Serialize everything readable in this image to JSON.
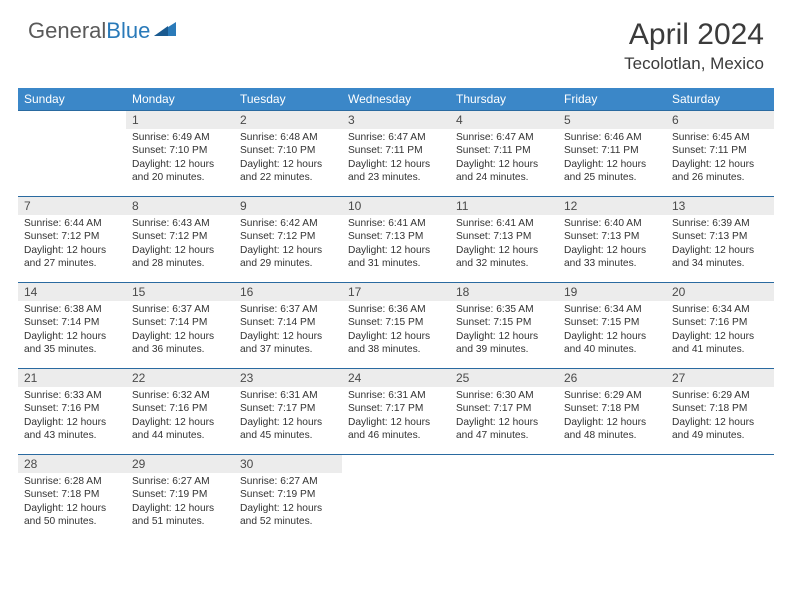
{
  "brand": {
    "left": "General",
    "right": "Blue"
  },
  "title": "April 2024",
  "location": "Tecolotlan, Mexico",
  "colors": {
    "header_bg": "#3b87c8",
    "header_text": "#ffffff",
    "daynum_bg": "#ececec",
    "rule": "#2a6aa0",
    "text": "#333333",
    "brand_gray": "#5a5a5a",
    "brand_blue": "#2a7ab9"
  },
  "daysOfWeek": [
    "Sunday",
    "Monday",
    "Tuesday",
    "Wednesday",
    "Thursday",
    "Friday",
    "Saturday"
  ],
  "weeks": [
    [
      null,
      {
        "n": "1",
        "sr": "6:49 AM",
        "ss": "7:10 PM",
        "dl": "12 hours and 20 minutes."
      },
      {
        "n": "2",
        "sr": "6:48 AM",
        "ss": "7:10 PM",
        "dl": "12 hours and 22 minutes."
      },
      {
        "n": "3",
        "sr": "6:47 AM",
        "ss": "7:11 PM",
        "dl": "12 hours and 23 minutes."
      },
      {
        "n": "4",
        "sr": "6:47 AM",
        "ss": "7:11 PM",
        "dl": "12 hours and 24 minutes."
      },
      {
        "n": "5",
        "sr": "6:46 AM",
        "ss": "7:11 PM",
        "dl": "12 hours and 25 minutes."
      },
      {
        "n": "6",
        "sr": "6:45 AM",
        "ss": "7:11 PM",
        "dl": "12 hours and 26 minutes."
      }
    ],
    [
      {
        "n": "7",
        "sr": "6:44 AM",
        "ss": "7:12 PM",
        "dl": "12 hours and 27 minutes."
      },
      {
        "n": "8",
        "sr": "6:43 AM",
        "ss": "7:12 PM",
        "dl": "12 hours and 28 minutes."
      },
      {
        "n": "9",
        "sr": "6:42 AM",
        "ss": "7:12 PM",
        "dl": "12 hours and 29 minutes."
      },
      {
        "n": "10",
        "sr": "6:41 AM",
        "ss": "7:13 PM",
        "dl": "12 hours and 31 minutes."
      },
      {
        "n": "11",
        "sr": "6:41 AM",
        "ss": "7:13 PM",
        "dl": "12 hours and 32 minutes."
      },
      {
        "n": "12",
        "sr": "6:40 AM",
        "ss": "7:13 PM",
        "dl": "12 hours and 33 minutes."
      },
      {
        "n": "13",
        "sr": "6:39 AM",
        "ss": "7:13 PM",
        "dl": "12 hours and 34 minutes."
      }
    ],
    [
      {
        "n": "14",
        "sr": "6:38 AM",
        "ss": "7:14 PM",
        "dl": "12 hours and 35 minutes."
      },
      {
        "n": "15",
        "sr": "6:37 AM",
        "ss": "7:14 PM",
        "dl": "12 hours and 36 minutes."
      },
      {
        "n": "16",
        "sr": "6:37 AM",
        "ss": "7:14 PM",
        "dl": "12 hours and 37 minutes."
      },
      {
        "n": "17",
        "sr": "6:36 AM",
        "ss": "7:15 PM",
        "dl": "12 hours and 38 minutes."
      },
      {
        "n": "18",
        "sr": "6:35 AM",
        "ss": "7:15 PM",
        "dl": "12 hours and 39 minutes."
      },
      {
        "n": "19",
        "sr": "6:34 AM",
        "ss": "7:15 PM",
        "dl": "12 hours and 40 minutes."
      },
      {
        "n": "20",
        "sr": "6:34 AM",
        "ss": "7:16 PM",
        "dl": "12 hours and 41 minutes."
      }
    ],
    [
      {
        "n": "21",
        "sr": "6:33 AM",
        "ss": "7:16 PM",
        "dl": "12 hours and 43 minutes."
      },
      {
        "n": "22",
        "sr": "6:32 AM",
        "ss": "7:16 PM",
        "dl": "12 hours and 44 minutes."
      },
      {
        "n": "23",
        "sr": "6:31 AM",
        "ss": "7:17 PM",
        "dl": "12 hours and 45 minutes."
      },
      {
        "n": "24",
        "sr": "6:31 AM",
        "ss": "7:17 PM",
        "dl": "12 hours and 46 minutes."
      },
      {
        "n": "25",
        "sr": "6:30 AM",
        "ss": "7:17 PM",
        "dl": "12 hours and 47 minutes."
      },
      {
        "n": "26",
        "sr": "6:29 AM",
        "ss": "7:18 PM",
        "dl": "12 hours and 48 minutes."
      },
      {
        "n": "27",
        "sr": "6:29 AM",
        "ss": "7:18 PM",
        "dl": "12 hours and 49 minutes."
      }
    ],
    [
      {
        "n": "28",
        "sr": "6:28 AM",
        "ss": "7:18 PM",
        "dl": "12 hours and 50 minutes."
      },
      {
        "n": "29",
        "sr": "6:27 AM",
        "ss": "7:19 PM",
        "dl": "12 hours and 51 minutes."
      },
      {
        "n": "30",
        "sr": "6:27 AM",
        "ss": "7:19 PM",
        "dl": "12 hours and 52 minutes."
      },
      null,
      null,
      null,
      null
    ]
  ],
  "labels": {
    "sunrise": "Sunrise:",
    "sunset": "Sunset:",
    "daylight": "Daylight:"
  }
}
